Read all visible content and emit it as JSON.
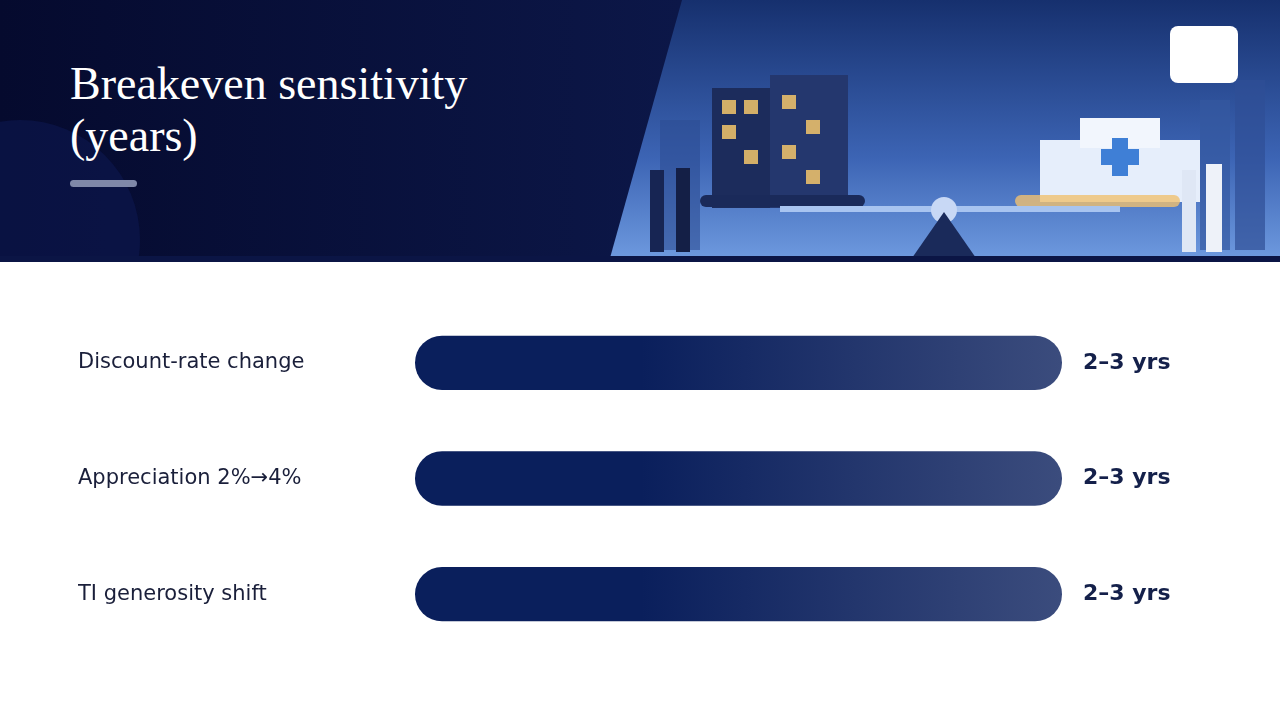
{
  "chart_data": {
    "type": "bar",
    "title": "Breakeven sensitivity (years)",
    "orientation": "horizontal",
    "categories": [
      "Discount-rate change",
      "Appreciation 2%→4%",
      "TI generosity shift"
    ],
    "values": [
      [
        2,
        3
      ],
      [
        2,
        3
      ],
      [
        2,
        3
      ]
    ],
    "value_labels": [
      "2–3 yrs",
      "2–3 yrs",
      "2–3 yrs"
    ],
    "data_labels": true,
    "color": "#0a1f5c",
    "xlim": [
      2,
      3
    ],
    "grid": false,
    "tick_labels": "y"
  }
}
